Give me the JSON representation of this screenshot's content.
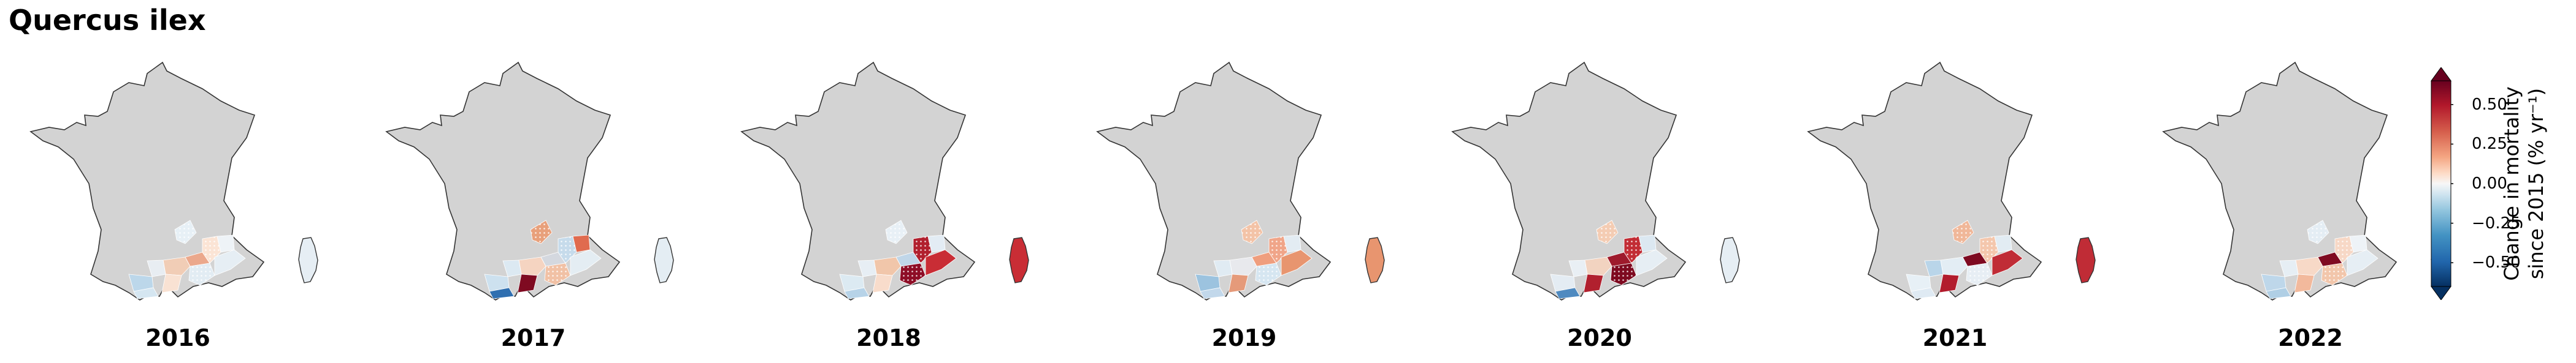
{
  "title": "Quercus ilex",
  "colors": {
    "land": "#d3d3d3",
    "outline": "#333333"
  },
  "colorbar": {
    "label_line1": "Change in mortality",
    "label_line2": "since 2015 (% yr⁻¹)",
    "ticks": [
      "0.50",
      "0.25",
      "0.00",
      "−0.25",
      "−0.50"
    ],
    "tick_values": [
      0.5,
      0.25,
      0.0,
      -0.25,
      -0.5
    ],
    "range": [
      -0.65,
      0.65
    ],
    "extend": "both",
    "colormap": "RdBu_r"
  },
  "panels": [
    {
      "year": "2016",
      "colors": [
        "#f1cdb6",
        "#e8edf2",
        "#eba88c",
        "#e2ecf3",
        "#bcd7ea",
        "#f9e2d3",
        "#d5e6f1",
        "#e7f0f6",
        "#fbe4d5",
        "#eef3f7",
        "#e6eef4"
      ]
    },
    {
      "year": "2017",
      "colors": [
        "#f5d4c1",
        "#dce9f2",
        "#d4d8df",
        "#f1c1a5",
        "#cde1ef",
        "#7f0a21",
        "#2f6fb0",
        "#e8a07b",
        "#c6dbeb",
        "#e06b4f",
        "#e4edf3"
      ]
    },
    {
      "year": "2018",
      "colors": [
        "#f1c6aa",
        "#e7eef4",
        "#c0d6e8",
        "#8e0d26",
        "#dceaf2",
        "#f8dccb",
        "#b7d3e8",
        "#e8f0f6",
        "#b1202e",
        "#e3ecf4",
        "#c92d35"
      ]
    },
    {
      "year": "2019",
      "colors": [
        "#e8e9ed",
        "#e0ebf3",
        "#ef9e7e",
        "#d6e6f1",
        "#9cc3df",
        "#e59a7a",
        "#c2d8eb",
        "#f3c3a7",
        "#f0a589",
        "#e3ecf3",
        "#e8956f"
      ]
    },
    {
      "year": "2020",
      "colors": [
        "#f2d3c0",
        "#e9eff4",
        "#9e1a2c",
        "#7e0a20",
        "#e4ecf3",
        "#b1202e",
        "#4f8ac0",
        "#f4ccb3",
        "#c22d35",
        "#dce8f1",
        "#e6eef4"
      ]
    },
    {
      "year": "2021",
      "colors": [
        "#e3edf4",
        "#b9d5e9",
        "#7e0a21",
        "#e7eef4",
        "#e7f0f6",
        "#b21c2d",
        "#dfeaf3",
        "#f0b799",
        "#f4c7ad",
        "#e2ecf3",
        "#c02c36"
      ]
    },
    {
      "year": "2022",
      "colors": [
        "#f7d9c7",
        "#e6eef4",
        "#7f0a21",
        "#f2c6ab",
        "#bed7ea",
        "#f2b99c",
        "#b0cfe5",
        "#e4edf4",
        "#f7d8c6",
        "#eef3f7",
        "#e6eef4"
      ]
    }
  ]
}
